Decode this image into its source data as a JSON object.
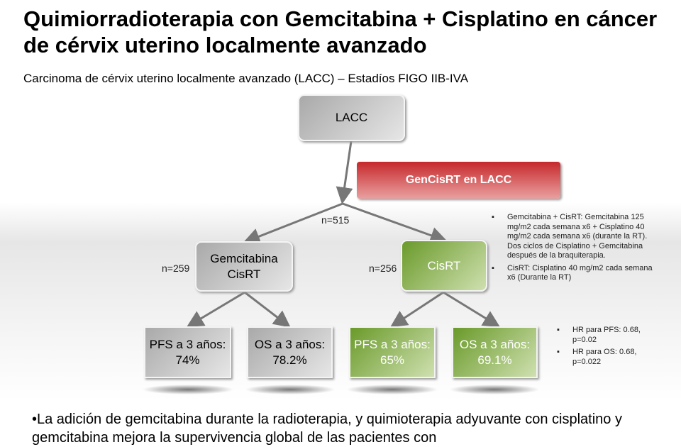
{
  "title": "Quimiorradioterapia con Gemcitabina + Cisplatino en cáncer de cérvix uterino localmente avanzado",
  "subtitle": "Carcinoma de cérvix uterino localmente avanzado (LACC) – Estadíos FIGO IIB-IVA",
  "diagram": {
    "root": "LACC",
    "trial": "GenCisRT en LACC",
    "n_total": "n=515",
    "arm_a": {
      "label_1": "Gemcitabina",
      "label_2": "CisRT",
      "n": "n=259",
      "pfs_1": "PFS a 3 años:",
      "pfs_2": "74%",
      "os_1": "OS a 3 años:",
      "os_2": "78.2%"
    },
    "arm_b": {
      "label": "CisRT",
      "n": "n=256",
      "pfs_1": "PFS a 3 años:",
      "pfs_2": "65%",
      "os_1": "OS a 3 años:",
      "os_2": "69.1%"
    },
    "regimen_notes": [
      "Gemcitabina + CisRT: Gemcitabina 125 mg/m2 cada semana x6 + Cisplatino 40 mg/m2 cada semana x6 (durante la RT). Dos ciclos de Cisplatino + Gemcitabina después de la braquiterapia.",
      "CisRT: Cisplatino 40 mg/m2 cada semana x6 (Durante la RT)"
    ],
    "hr_notes": [
      "HR para PFS: 0.68, p=0.02",
      "HR para OS: 0.68, p=0.022"
    ],
    "colors": {
      "trial": "#c6282b",
      "arm_b": "#6a9a2a",
      "arm_a": "#b0b0b0"
    }
  },
  "footer": "•La adición de gemcitabina durante la radioterapia, y quimioterapia adyuvante con cisplatino y gemcitabina mejora la supervivencia global de las pacientes con"
}
